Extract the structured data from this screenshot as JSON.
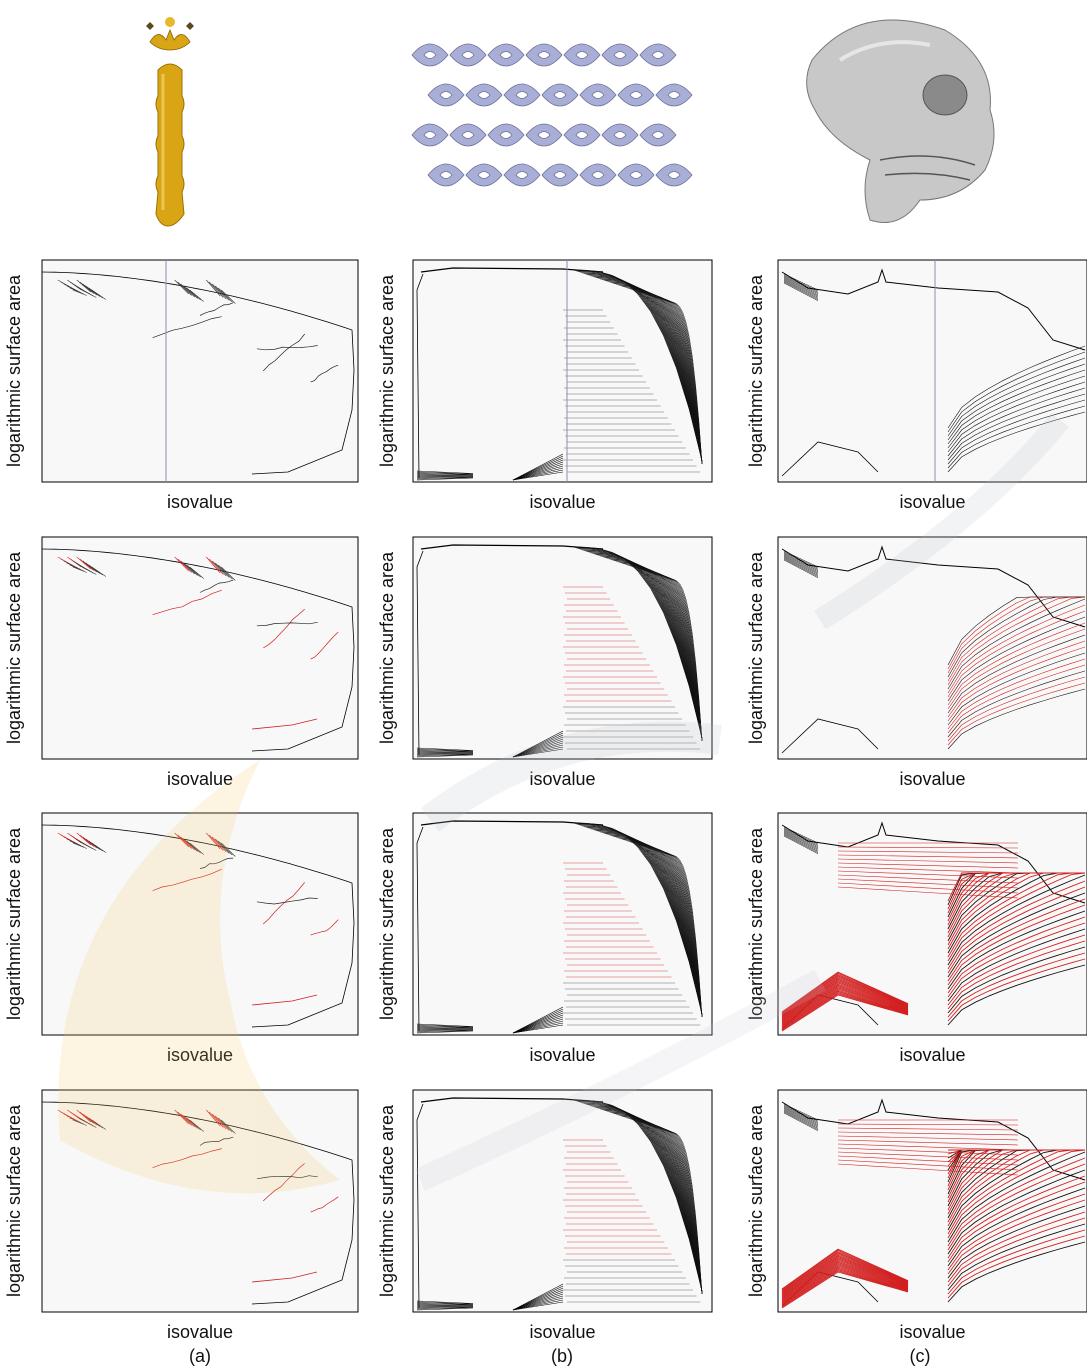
{
  "figure": {
    "columns": [
      {
        "caption": "(a)",
        "thumbnail": "golden-rod-isosurface",
        "thumbnail_color": "#D9A514"
      },
      {
        "caption": "(b)",
        "thumbnail": "lattice-isosurface",
        "thumbnail_color": "#A9AED6"
      },
      {
        "caption": "(c)",
        "thumbnail": "skull-isosurface",
        "thumbnail_color": "#C8C8C8"
      }
    ],
    "highlight_color": "#D21E1E",
    "line_color": "#000000",
    "marker_color": "#8A8FB8",
    "plot_background": "#F8F8F8"
  },
  "chart_data": [
    {
      "type": "line",
      "column": "a",
      "row": 1,
      "xlabel": "isovalue",
      "ylabel": "logarithmic surface area",
      "vertical_marker": true,
      "highlighted": false
    },
    {
      "type": "line",
      "column": "b",
      "row": 1,
      "xlabel": "isovalue",
      "ylabel": "logarithmic surface area",
      "vertical_marker": true,
      "highlighted": false
    },
    {
      "type": "line",
      "column": "c",
      "row": 1,
      "xlabel": "isovalue",
      "ylabel": "logarithmic surface area",
      "vertical_marker": true,
      "highlighted": false
    },
    {
      "type": "line",
      "column": "a",
      "row": 2,
      "xlabel": "isovalue",
      "ylabel": "logarithmic surface area",
      "vertical_marker": false,
      "highlighted": true
    },
    {
      "type": "line",
      "column": "b",
      "row": 2,
      "xlabel": "isovalue",
      "ylabel": "logarithmic surface area",
      "vertical_marker": false,
      "highlighted": true
    },
    {
      "type": "line",
      "column": "c",
      "row": 2,
      "xlabel": "isovalue",
      "ylabel": "logarithmic surface area",
      "vertical_marker": false,
      "highlighted": true
    },
    {
      "type": "line",
      "column": "a",
      "row": 3,
      "xlabel": "isovalue",
      "ylabel": "logarithmic surface area",
      "vertical_marker": false,
      "highlighted": true
    },
    {
      "type": "line",
      "column": "b",
      "row": 3,
      "xlabel": "isovalue",
      "ylabel": "logarithmic surface area",
      "vertical_marker": false,
      "highlighted": true
    },
    {
      "type": "line",
      "column": "c",
      "row": 3,
      "xlabel": "isovalue",
      "ylabel": "logarithmic surface area",
      "vertical_marker": false,
      "highlighted": true
    },
    {
      "type": "line",
      "column": "a",
      "row": 4,
      "xlabel": "isovalue",
      "ylabel": "logarithmic surface area",
      "vertical_marker": false,
      "highlighted": true
    },
    {
      "type": "line",
      "column": "b",
      "row": 4,
      "xlabel": "isovalue",
      "ylabel": "logarithmic surface area",
      "vertical_marker": false,
      "highlighted": true
    },
    {
      "type": "line",
      "column": "c",
      "row": 4,
      "xlabel": "isovalue",
      "ylabel": "logarithmic surface area",
      "vertical_marker": false,
      "highlighted": true
    }
  ]
}
